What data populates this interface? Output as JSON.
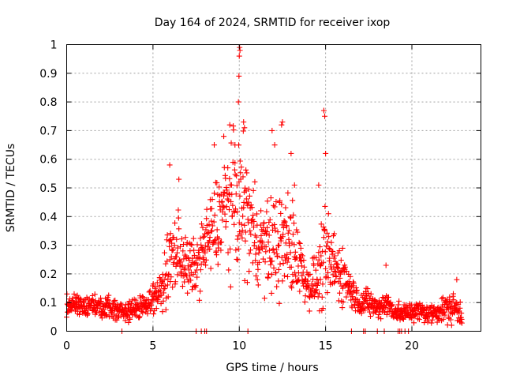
{
  "chart_data": {
    "type": "scatter",
    "title": "Day 164 of 2024, SRMTID for receiver ixop",
    "xlabel": "GPS time / hours",
    "ylabel": "SRMTID / TECUs",
    "xlim": [
      0,
      24
    ],
    "ylim": [
      0,
      1
    ],
    "xticks": [
      0,
      5,
      10,
      15,
      20
    ],
    "xtick_labels": [
      "0",
      "5",
      "10",
      "15",
      "20"
    ],
    "yticks": [
      0,
      0.1,
      0.2,
      0.3,
      0.4,
      0.5,
      0.6,
      0.7,
      0.8,
      0.9,
      1
    ],
    "ytick_labels": [
      "0",
      "0.1",
      "0.2",
      "0.3",
      "0.4",
      "0.5",
      "0.6",
      "0.7",
      "0.8",
      "0.9",
      "1"
    ],
    "grid": true,
    "marker": "+",
    "marker_color": "#ff0000",
    "series": [
      {
        "name": "SRMTID",
        "envelope": {
          "x": [
            0,
            0.5,
            1,
            1.5,
            2,
            2.5,
            3,
            3.5,
            4,
            4.5,
            5,
            5.5,
            6,
            6.5,
            7,
            7.5,
            8,
            8.5,
            9,
            9.5,
            10,
            10.5,
            11,
            11.5,
            12,
            12.5,
            13,
            13.5,
            14,
            14.5,
            15,
            15.5,
            16,
            16.5,
            17,
            17.5,
            18,
            18.5,
            19,
            19.5,
            20,
            20.5,
            21,
            21.5,
            22,
            22.5,
            22.9
          ],
          "center": [
            0.09,
            0.09,
            0.08,
            0.09,
            0.08,
            0.08,
            0.07,
            0.07,
            0.08,
            0.09,
            0.12,
            0.14,
            0.25,
            0.28,
            0.22,
            0.22,
            0.3,
            0.35,
            0.42,
            0.45,
            0.45,
            0.4,
            0.32,
            0.3,
            0.3,
            0.3,
            0.3,
            0.24,
            0.16,
            0.18,
            0.25,
            0.22,
            0.2,
            0.14,
            0.1,
            0.1,
            0.08,
            0.1,
            0.07,
            0.06,
            0.07,
            0.07,
            0.06,
            0.07,
            0.08,
            0.08,
            0.06
          ],
          "spread": [
            0.03,
            0.03,
            0.03,
            0.03,
            0.03,
            0.03,
            0.03,
            0.03,
            0.03,
            0.03,
            0.04,
            0.05,
            0.12,
            0.12,
            0.08,
            0.08,
            0.1,
            0.13,
            0.15,
            0.18,
            0.2,
            0.18,
            0.13,
            0.12,
            0.15,
            0.15,
            0.15,
            0.1,
            0.06,
            0.08,
            0.15,
            0.1,
            0.08,
            0.05,
            0.04,
            0.04,
            0.03,
            0.04,
            0.03,
            0.03,
            0.03,
            0.03,
            0.03,
            0.03,
            0.04,
            0.05,
            0.03
          ]
        },
        "points_per_hour": 60,
        "peaks": [
          {
            "x": 5.97,
            "y": 0.58
          },
          {
            "x": 6.5,
            "y": 0.53
          },
          {
            "x": 8.55,
            "y": 0.65
          },
          {
            "x": 9.1,
            "y": 0.68
          },
          {
            "x": 9.45,
            "y": 0.72
          },
          {
            "x": 9.75,
            "y": 0.65
          },
          {
            "x": 9.95,
            "y": 0.8
          },
          {
            "x": 9.98,
            "y": 0.89
          },
          {
            "x": 10.0,
            "y": 0.96
          },
          {
            "x": 10.02,
            "y": 0.99
          },
          {
            "x": 10.04,
            "y": 0.98
          },
          {
            "x": 10.25,
            "y": 0.73
          },
          {
            "x": 10.3,
            "y": 0.71
          },
          {
            "x": 11.9,
            "y": 0.7
          },
          {
            "x": 12.05,
            "y": 0.65
          },
          {
            "x": 12.45,
            "y": 0.72
          },
          {
            "x": 12.5,
            "y": 0.73
          },
          {
            "x": 13.0,
            "y": 0.62
          },
          {
            "x": 13.2,
            "y": 0.51
          },
          {
            "x": 14.6,
            "y": 0.51
          },
          {
            "x": 14.9,
            "y": 0.77
          },
          {
            "x": 14.95,
            "y": 0.75
          },
          {
            "x": 15.0,
            "y": 0.62
          },
          {
            "x": 15.5,
            "y": 0.34
          },
          {
            "x": 18.5,
            "y": 0.23
          },
          {
            "x": 22.6,
            "y": 0.18
          }
        ],
        "zeros": [
          3.2,
          7.5,
          7.8,
          8.0,
          8.1,
          10.5,
          16.5,
          17.2,
          17.3,
          18.0,
          18.4,
          19.2,
          19.3,
          19.4,
          19.6,
          19.8
        ]
      }
    ]
  }
}
